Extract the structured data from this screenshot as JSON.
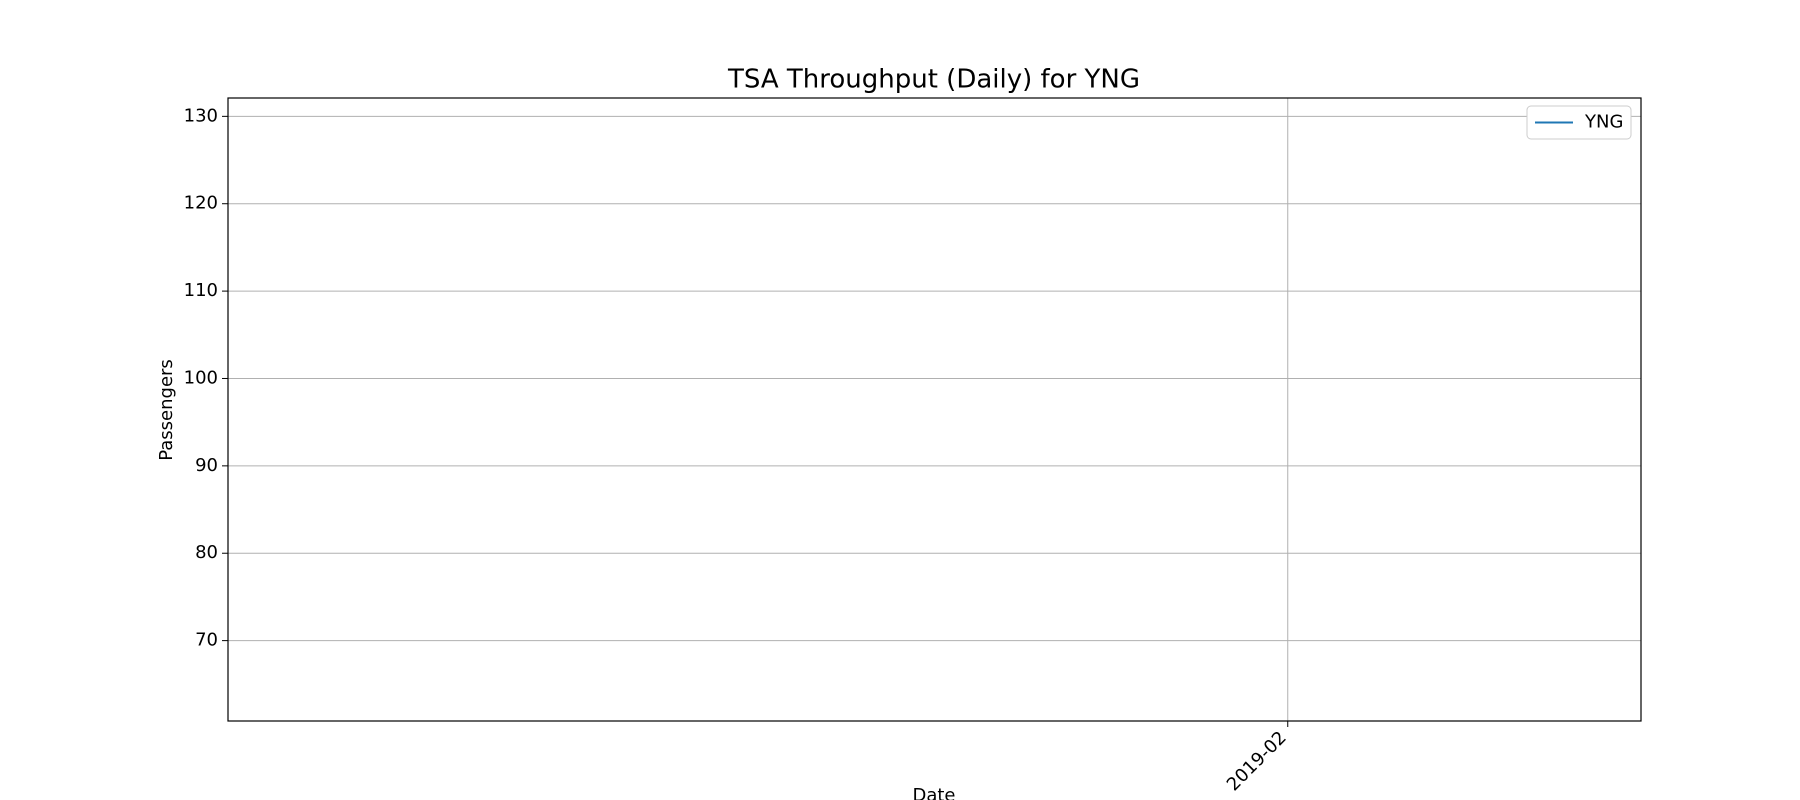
{
  "chart_data": {
    "type": "line",
    "title": "TSA Throughput (Daily) for YNG",
    "xlabel": "Date",
    "ylabel": "Passengers",
    "x": [],
    "series": [
      {
        "name": "YNG",
        "color": "#1f77b4",
        "values": []
      }
    ],
    "xlim": [
      "2018-11",
      "2019-03"
    ],
    "xticks": [
      "2019-02"
    ],
    "ylim": [
      60.8,
      132.1
    ],
    "yticks": [
      70,
      80,
      90,
      100,
      110,
      120,
      130
    ],
    "grid": true,
    "legend": "upper right"
  }
}
